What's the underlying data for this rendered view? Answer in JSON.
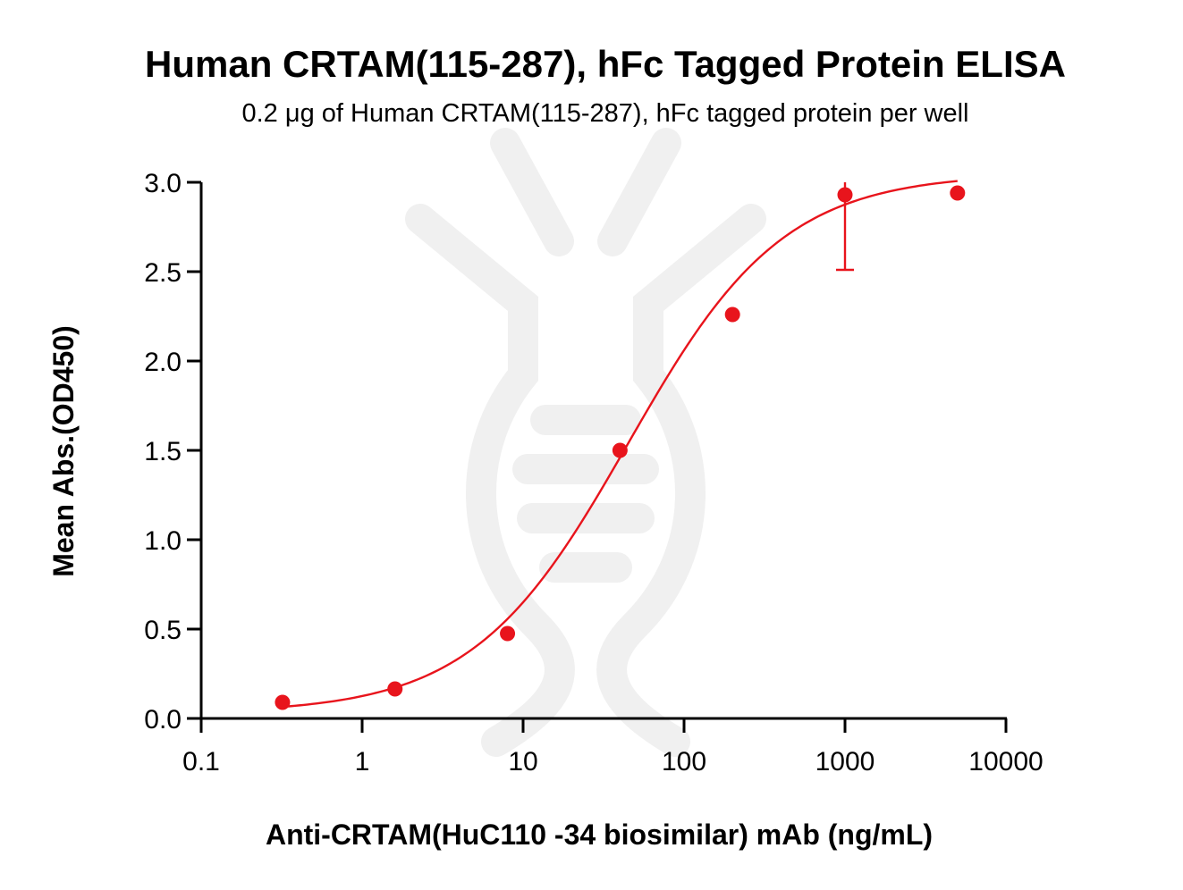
{
  "chart_data": {
    "type": "scatter",
    "title": "Human CRTAM(115-287), hFc Tagged Protein ELISA",
    "subtitle": "0.2 μg of Human CRTAM(115-287), hFc tagged protein per well",
    "xlabel": "Anti-CRTAM(HuC110 -34 biosimilar) mAb (ng/mL)",
    "ylabel": "Mean Abs.(OD450)",
    "x_scale": "log",
    "xlim": [
      0.1,
      10000
    ],
    "ylim": [
      0,
      3.0
    ],
    "x_ticks": [
      0.1,
      1,
      10,
      100,
      1000,
      10000
    ],
    "x_tick_labels": [
      "0.1",
      "1",
      "10",
      "100",
      "1000",
      "10000"
    ],
    "y_ticks": [
      0,
      0.5,
      1.0,
      1.5,
      2.0,
      2.5,
      3.0
    ],
    "y_tick_labels": [
      "0.0",
      "0.5",
      "1.0",
      "1.5",
      "2.0",
      "2.5",
      "3.0"
    ],
    "grid": false,
    "color": "#e8141c",
    "series": [
      {
        "x": [
          0.32,
          1.6,
          8,
          40,
          200,
          1000,
          5000
        ],
        "y": [
          0.09,
          0.165,
          0.475,
          1.5,
          2.26,
          2.93,
          2.94
        ],
        "error_low": [
          null,
          null,
          null,
          null,
          null,
          2.51,
          null
        ],
        "error_high": [
          null,
          null,
          null,
          null,
          null,
          3.0,
          null
        ]
      }
    ],
    "fit": {
      "type": "4PL",
      "bottom": 0.03,
      "top": 3.05,
      "ec50": 45,
      "hill": 0.9
    }
  }
}
